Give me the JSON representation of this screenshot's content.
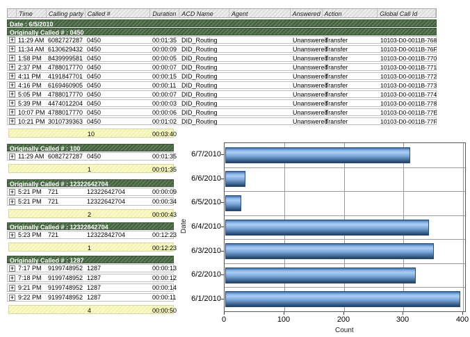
{
  "columns": [
    "Time",
    "Calling party #",
    "Called #",
    "Duration",
    "ACD Name",
    "Agent",
    "Answered",
    "Action",
    "Global Call Id"
  ],
  "date_band": "Date : 6/5/2010",
  "main_group": {
    "label": "Originally Called # : 0450",
    "rows": [
      {
        "time": "11:29 AM",
        "calling": "6082727287",
        "called": "0450",
        "duration": "00:01:35",
        "acd": "DID_Routing",
        "agent": "",
        "answered": "Unanswered",
        "action": "Transfer",
        "global_id": "10103-D0-0011B-768"
      },
      {
        "time": "11:34 AM",
        "calling": "6130629432",
        "called": "0450",
        "duration": "00:00:09",
        "acd": "DID_Routing",
        "agent": "",
        "answered": "Unanswered",
        "action": "Transfer",
        "global_id": "10103-D0-0011B-76F"
      },
      {
        "time": "1:58 PM",
        "calling": "8439999581",
        "called": "0450",
        "duration": "00:00:05",
        "acd": "DID_Routing",
        "agent": "",
        "answered": "Unanswered",
        "action": "Transfer",
        "global_id": "10103-D0-0011B-770"
      },
      {
        "time": "2:37 PM",
        "calling": "4788017770",
        "called": "0450",
        "duration": "00:00:07",
        "acd": "DID_Routing",
        "agent": "",
        "answered": "Unanswered",
        "action": "Transfer",
        "global_id": "10103-D0-0011B-771"
      },
      {
        "time": "4:11 PM",
        "calling": "4191847701",
        "called": "0450",
        "duration": "00:00:15",
        "acd": "DID_Routing",
        "agent": "",
        "answered": "Unanswered",
        "action": "Transfer",
        "global_id": "10103-D0-0011B-772"
      },
      {
        "time": "4:16 PM",
        "calling": "6169460905",
        "called": "0450",
        "duration": "00:00:11",
        "acd": "DID_Routing",
        "agent": "",
        "answered": "Unanswered",
        "action": "Transfer",
        "global_id": "10103-D0-0011B-773"
      },
      {
        "time": "5:05 PM",
        "calling": "4788017770",
        "called": "0450",
        "duration": "00:00:07",
        "acd": "DID_Routing",
        "agent": "",
        "answered": "Unanswered",
        "action": "Transfer",
        "global_id": "10103-D0-0011B-774"
      },
      {
        "time": "5:39 PM",
        "calling": "4474012204",
        "called": "0450",
        "duration": "00:00:03",
        "acd": "DID_Routing",
        "agent": "",
        "answered": "Unanswered",
        "action": "Transfer",
        "global_id": "10103-D0-0011B-778"
      },
      {
        "time": "10:07 PM",
        "calling": "4788017770",
        "called": "0450",
        "duration": "00:00:06",
        "acd": "DID_Routing",
        "agent": "",
        "answered": "Unanswered",
        "action": "Transfer",
        "global_id": "10103-D0-0011B-77E"
      },
      {
        "time": "10:21 PM",
        "calling": "3010739363",
        "called": "0450",
        "duration": "00:01:02",
        "acd": "DID_Routing",
        "agent": "",
        "answered": "Unanswered",
        "action": "Transfer",
        "global_id": "10103-D0-0011B-77F"
      }
    ],
    "summary": {
      "count": "10",
      "duration": "00:03:40"
    }
  },
  "groups": [
    {
      "label": "Originally Called # : 100",
      "rows": [
        {
          "time": "11:29 AM",
          "calling": "6082727287",
          "called": "0450",
          "duration": "00:01:35"
        }
      ],
      "summary": {
        "count": "1",
        "duration": "00:01:35"
      }
    },
    {
      "label": "Originally Called # : 12322642704",
      "rows": [
        {
          "time": "5:21 PM",
          "calling": "721",
          "called": "12322642704",
          "duration": "00:00:09"
        },
        {
          "time": "5:21 PM",
          "calling": "721",
          "called": "12322642704",
          "duration": "00:00:34"
        }
      ],
      "summary": {
        "count": "2",
        "duration": "00:00:43"
      }
    },
    {
      "label": "Originally Called # : 12322842704",
      "rows": [
        {
          "time": "5:23 PM",
          "calling": "721",
          "called": "12322842704",
          "duration": "00:12:23"
        }
      ],
      "summary": {
        "count": "1",
        "duration": "00:12:23"
      }
    },
    {
      "label": "Originally Called # : 1287",
      "rows": [
        {
          "time": "7:17 PM",
          "calling": "9199748952",
          "called": "1287",
          "duration": "00:00:13"
        },
        {
          "time": "7:18 PM",
          "calling": "9199748952",
          "called": "1287",
          "duration": "00:00:12"
        },
        {
          "time": "9:21 PM",
          "calling": "9199748952",
          "called": "1287",
          "duration": "00:00:14"
        },
        {
          "time": "9:22 PM",
          "calling": "9199748952",
          "called": "1287",
          "duration": "00:00:11"
        }
      ],
      "summary": {
        "count": "4",
        "duration": "00:00:50"
      }
    }
  ],
  "chart_data": {
    "type": "bar",
    "orientation": "horizontal",
    "categories": [
      "6/7/2010",
      "6/6/2010",
      "6/5/2010",
      "6/4/2010",
      "6/3/2010",
      "6/2/2010",
      "6/1/2010"
    ],
    "values": [
      310,
      34,
      27,
      342,
      350,
      320,
      394
    ],
    "title": "",
    "xlabel": "Count",
    "ylabel": "Date",
    "xlim": [
      0,
      400
    ],
    "xticks": [
      0,
      100,
      200,
      300,
      400
    ],
    "grid": true,
    "bar_color_light": "#abcdf4",
    "bar_color_dark": "#203f66",
    "band_color": "#50714b",
    "summary_color": "#f6f6bc"
  }
}
